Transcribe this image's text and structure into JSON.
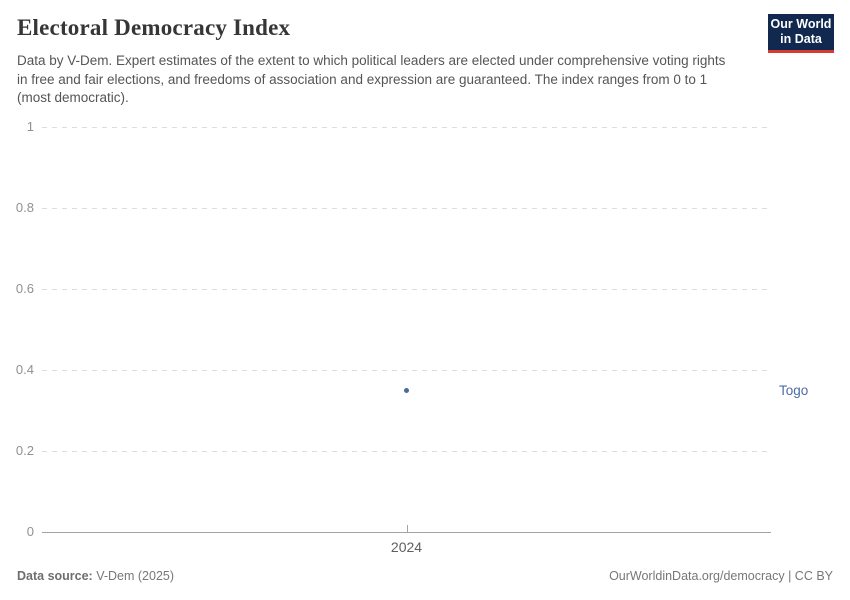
{
  "header": {
    "title": "Electoral Democracy Index",
    "subtitle": "Data by V-Dem. Expert estimates of the extent to which political leaders are elected under comprehensive voting rights in free and fair elections, and freedoms of association and expression are guaranteed. The index ranges from 0 to 1 (most democratic).",
    "logo": {
      "line1": "Our World",
      "line2": "in Data",
      "bg_color": "#12294f",
      "accent_color": "#d73c34"
    }
  },
  "chart_data": {
    "type": "scatter",
    "title": "Electoral Democracy Index",
    "x": [
      2024
    ],
    "xtick_labels": [
      "2024"
    ],
    "series": [
      {
        "name": "Togo",
        "values": [
          0.35
        ],
        "color": "#4c6a9c",
        "label_color": "#4c6ba8"
      }
    ],
    "ylim": [
      0,
      1
    ],
    "yticks": [
      0,
      0.2,
      0.4,
      0.6,
      0.8,
      1
    ],
    "ytick_labels": [
      "0",
      "0.2",
      "0.4",
      "0.6",
      "0.8",
      "1"
    ],
    "xlabel": "",
    "ylabel": "",
    "grid": "horizontal-dashed",
    "legend": "entity-label-right"
  },
  "footer": {
    "source_label": "Data source:",
    "source_value": " V-Dem (2025)",
    "credit": "OurWorldinData.org/democracy | CC BY"
  }
}
